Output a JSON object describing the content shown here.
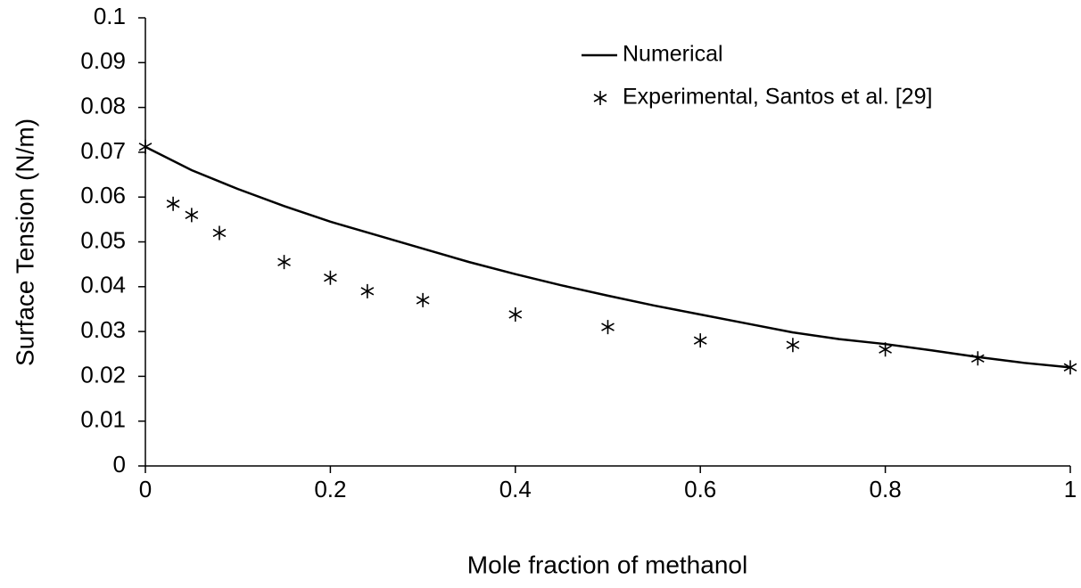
{
  "chart_data": {
    "type": "line",
    "xlabel": "Mole fraction of methanol",
    "ylabel": "Surface Tension (N/m)",
    "xlim": [
      0,
      1
    ],
    "ylim": [
      0,
      0.1
    ],
    "xticks": [
      0,
      0.2,
      0.4,
      0.6,
      0.8,
      1
    ],
    "yticks": [
      0,
      0.01,
      0.02,
      0.03,
      0.04,
      0.05,
      0.06,
      0.07,
      0.08,
      0.09,
      0.1
    ],
    "grid": false,
    "legend": "upper right",
    "series": [
      {
        "name": "Numerical",
        "color": "#000000",
        "mode": "line",
        "x": [
          0,
          0.05,
          0.1,
          0.15,
          0.2,
          0.25,
          0.3,
          0.35,
          0.4,
          0.45,
          0.5,
          0.55,
          0.6,
          0.65,
          0.7,
          0.75,
          0.8,
          0.85,
          0.9,
          0.95,
          1
        ],
        "values": [
          0.0712,
          0.066,
          0.0618,
          0.058,
          0.0545,
          0.0515,
          0.0485,
          0.0455,
          0.0428,
          0.0403,
          0.038,
          0.0358,
          0.0338,
          0.0318,
          0.0298,
          0.0283,
          0.0272,
          0.0258,
          0.0243,
          0.023,
          0.022
        ]
      },
      {
        "name": "Experimental, Santos et al. [29]",
        "color": "#000000",
        "mode": "markers",
        "x": [
          0,
          0.03,
          0.05,
          0.08,
          0.15,
          0.2,
          0.24,
          0.3,
          0.4,
          0.5,
          0.6,
          0.7,
          0.8,
          0.9,
          1
        ],
        "values": [
          0.0712,
          0.0585,
          0.056,
          0.052,
          0.0455,
          0.042,
          0.039,
          0.037,
          0.0338,
          0.031,
          0.028,
          0.027,
          0.026,
          0.024,
          0.022
        ]
      }
    ]
  }
}
